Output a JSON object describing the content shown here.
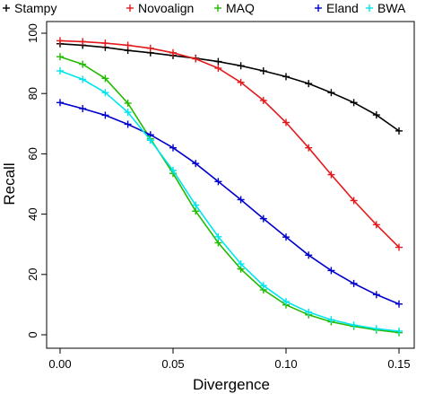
{
  "chart_data": {
    "type": "line",
    "title": "",
    "xlabel": "Divergence",
    "ylabel": "Recall",
    "xlim": [
      0.0,
      0.15
    ],
    "ylim": [
      0,
      100
    ],
    "xticks": [
      0.0,
      0.05,
      0.1,
      0.15
    ],
    "xtick_labels": [
      "0.00",
      "0.05",
      "0.10",
      "0.15"
    ],
    "yticks": [
      0,
      20,
      40,
      60,
      80,
      100
    ],
    "ytick_labels": [
      "0",
      "20",
      "40",
      "60",
      "80",
      "100"
    ],
    "grid": false,
    "legend_position": "top",
    "marker": "+",
    "x": [
      0.0,
      0.01,
      0.02,
      0.03,
      0.04,
      0.05,
      0.06,
      0.07,
      0.08,
      0.09,
      0.1,
      0.11,
      0.12,
      0.13,
      0.14,
      0.15
    ],
    "series": [
      {
        "name": "Stampy",
        "color": "#000000",
        "values": [
          96.5,
          96.0,
          95.3,
          94.3,
          93.5,
          92.6,
          91.7,
          90.6,
          89.2,
          87.5,
          85.6,
          83.3,
          80.3,
          77.0,
          72.9,
          67.6
        ]
      },
      {
        "name": "Novoalign",
        "color": "#e31a1c",
        "values": [
          97.5,
          97.2,
          96.7,
          96.0,
          95.0,
          93.5,
          91.5,
          88.4,
          83.7,
          77.7,
          70.4,
          62.0,
          53.1,
          44.5,
          36.5,
          29.0
        ]
      },
      {
        "name": "MAQ",
        "color": "#22bb00",
        "values": [
          92.2,
          89.7,
          85.0,
          76.8,
          65.0,
          53.5,
          41.0,
          30.5,
          21.8,
          14.9,
          9.9,
          6.6,
          4.3,
          2.8,
          1.6,
          0.7
        ]
      },
      {
        "name": "Eland",
        "color": "#0000cc",
        "values": [
          77.0,
          75.0,
          72.8,
          69.8,
          66.3,
          62.0,
          56.8,
          50.8,
          44.8,
          38.5,
          32.4,
          26.4,
          21.3,
          17.0,
          13.3,
          10.2
        ]
      },
      {
        "name": "BWA",
        "color": "#00e5ee",
        "values": [
          87.5,
          84.7,
          80.3,
          73.8,
          64.5,
          54.5,
          43.0,
          32.5,
          23.5,
          16.3,
          11.0,
          7.5,
          5.0,
          3.2,
          2.0,
          1.2
        ]
      }
    ]
  }
}
